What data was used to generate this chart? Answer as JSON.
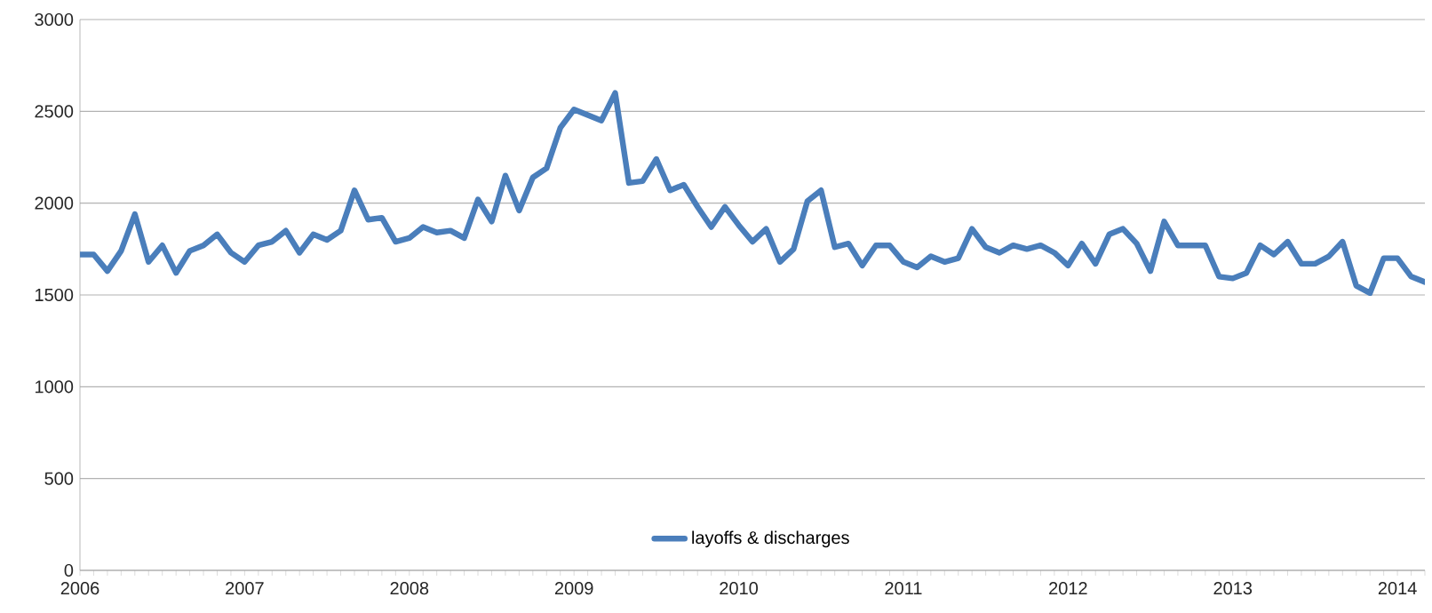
{
  "chart_data": {
    "type": "line",
    "categories": [
      "2006",
      null,
      null,
      null,
      null,
      null,
      null,
      null,
      null,
      null,
      null,
      null,
      "2007",
      null,
      null,
      null,
      null,
      null,
      null,
      null,
      null,
      null,
      null,
      null,
      "2008",
      null,
      null,
      null,
      null,
      null,
      null,
      null,
      null,
      null,
      null,
      null,
      "2009",
      null,
      null,
      null,
      null,
      null,
      null,
      null,
      null,
      null,
      null,
      null,
      "2010",
      null,
      null,
      null,
      null,
      null,
      null,
      null,
      null,
      null,
      null,
      null,
      "2011",
      null,
      null,
      null,
      null,
      null,
      null,
      null,
      null,
      null,
      null,
      null,
      "2012",
      null,
      null,
      null,
      null,
      null,
      null,
      null,
      null,
      null,
      null,
      null,
      "2013",
      null,
      null,
      null,
      null,
      null,
      null,
      null,
      null,
      null,
      null,
      null,
      "2014",
      null,
      null
    ],
    "series": [
      {
        "name": "layoffs & discharges",
        "color": "#4a7ebb",
        "values": [
          1720,
          1720,
          1630,
          1740,
          1940,
          1680,
          1770,
          1620,
          1740,
          1770,
          1830,
          1730,
          1680,
          1770,
          1790,
          1850,
          1730,
          1830,
          1800,
          1850,
          2070,
          1910,
          1920,
          1790,
          1810,
          1870,
          1840,
          1850,
          1810,
          2020,
          1900,
          2150,
          1960,
          2140,
          2190,
          2410,
          2510,
          2480,
          2450,
          2600,
          2110,
          2120,
          2240,
          2070,
          2100,
          1980,
          1870,
          1980,
          1880,
          1790,
          1860,
          1680,
          1750,
          2010,
          2070,
          1760,
          1780,
          1660,
          1770,
          1770,
          1680,
          1650,
          1710,
          1680,
          1700,
          1860,
          1760,
          1730,
          1770,
          1750,
          1770,
          1730,
          1660,
          1780,
          1670,
          1830,
          1860,
          1780,
          1630,
          1900,
          1770,
          1770,
          1770,
          1600,
          1590,
          1620,
          1770,
          1720,
          1790,
          1670,
          1670,
          1710,
          1790,
          1550,
          1510,
          1700,
          1700,
          1600,
          1570
        ]
      }
    ],
    "ylim": [
      0,
      3000
    ],
    "yticks": [
      0,
      500,
      1000,
      1500,
      2000,
      2500,
      3000
    ],
    "grid": "y",
    "legend": "bottom",
    "marker": "none",
    "line_style": "solid"
  }
}
